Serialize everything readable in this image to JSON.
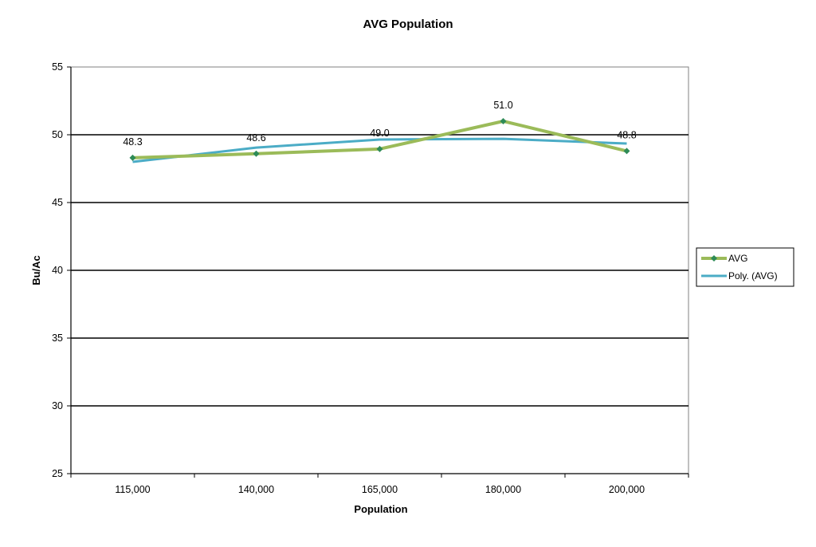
{
  "chart_data": {
    "type": "line",
    "title": "AVG Population",
    "xlabel": "Population",
    "ylabel": "Bu/Ac",
    "categories": [
      "115,000",
      "140,000",
      "165,000",
      "180,000",
      "200,000"
    ],
    "ylim": [
      25,
      55
    ],
    "yticks": [
      25,
      30,
      35,
      40,
      45,
      50,
      55
    ],
    "grid": true,
    "legend_position": "right",
    "series": [
      {
        "name": "AVG",
        "values": [
          48.3,
          48.6,
          48.95,
          51.0,
          48.8
        ],
        "data_labels": [
          "48.3",
          "48.6",
          "49.0",
          "51.0",
          "48.8"
        ],
        "color": "#9bbb59",
        "marker_color": "#2e8b57"
      },
      {
        "name": "Poly. (AVG)",
        "values": [
          48.0,
          49.05,
          49.65,
          49.7,
          49.35
        ],
        "color": "#4bacc6"
      }
    ]
  }
}
